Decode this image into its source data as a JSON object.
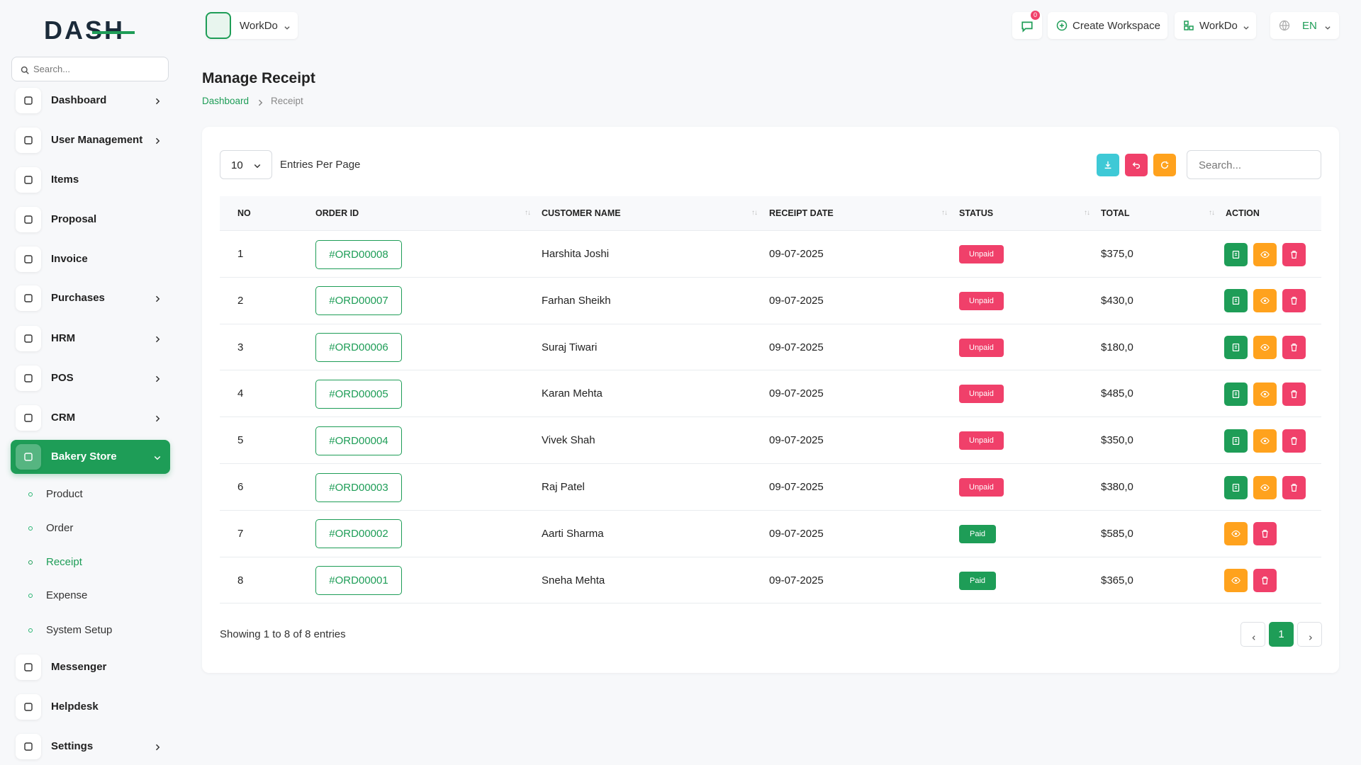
{
  "logo": "DASH",
  "sidebar": {
    "search_placeholder": "Search...",
    "menu": [
      "Dashboard",
      "User Management",
      "Items",
      "Proposal",
      "Invoice",
      "Purchases",
      "HRM",
      "POS",
      "CRM",
      "Bakery Store"
    ],
    "submenu": [
      "Product",
      "Order",
      "Receipt",
      "Expense",
      "System Setup"
    ],
    "bottom_menu": [
      "Messenger",
      "Helpdesk",
      "Settings"
    ]
  },
  "header": {
    "workspace": "WorkDo",
    "notifications": "0",
    "create_workspace": "Create Workspace",
    "workspace_menu": "WorkDo",
    "language": "EN"
  },
  "page": {
    "title": "Manage Receipt",
    "breadcrumb": [
      "Dashboard",
      "Receipt"
    ]
  },
  "table": {
    "page_size": "10",
    "page_size_label": "Entries Per Page",
    "search_placeholder": "Search...",
    "columns": [
      "NO",
      "ORDER ID",
      "CUSTOMER NAME",
      "RECEIPT DATE",
      "STATUS",
      "TOTAL",
      "ACTION"
    ],
    "rows": [
      [
        "1",
        "#ORD00008",
        "Harshita Joshi",
        "09-07-2025",
        "Unpaid",
        "$375,0"
      ],
      [
        "2",
        "#ORD00007",
        "Farhan Sheikh",
        "09-07-2025",
        "Unpaid",
        "$430,0"
      ],
      [
        "3",
        "#ORD00006",
        "Suraj Tiwari",
        "09-07-2025",
        "Unpaid",
        "$180,0"
      ],
      [
        "4",
        "#ORD00005",
        "Karan Mehta",
        "09-07-2025",
        "Unpaid",
        "$485,0"
      ],
      [
        "5",
        "#ORD00004",
        "Vivek Shah",
        "09-07-2025",
        "Unpaid",
        "$350,0"
      ],
      [
        "6",
        "#ORD00003",
        "Raj Patel",
        "09-07-2025",
        "Unpaid",
        "$380,0"
      ],
      [
        "7",
        "#ORD00002",
        "Aarti Sharma",
        "09-07-2025",
        "Paid",
        "$585,0"
      ],
      [
        "8",
        "#ORD00001",
        "Sneha Mehta",
        "09-07-2025",
        "Paid",
        "$365,0"
      ]
    ],
    "footer": "Showing 1 to 8 of 8 entries",
    "pagination": [
      "1"
    ]
  }
}
